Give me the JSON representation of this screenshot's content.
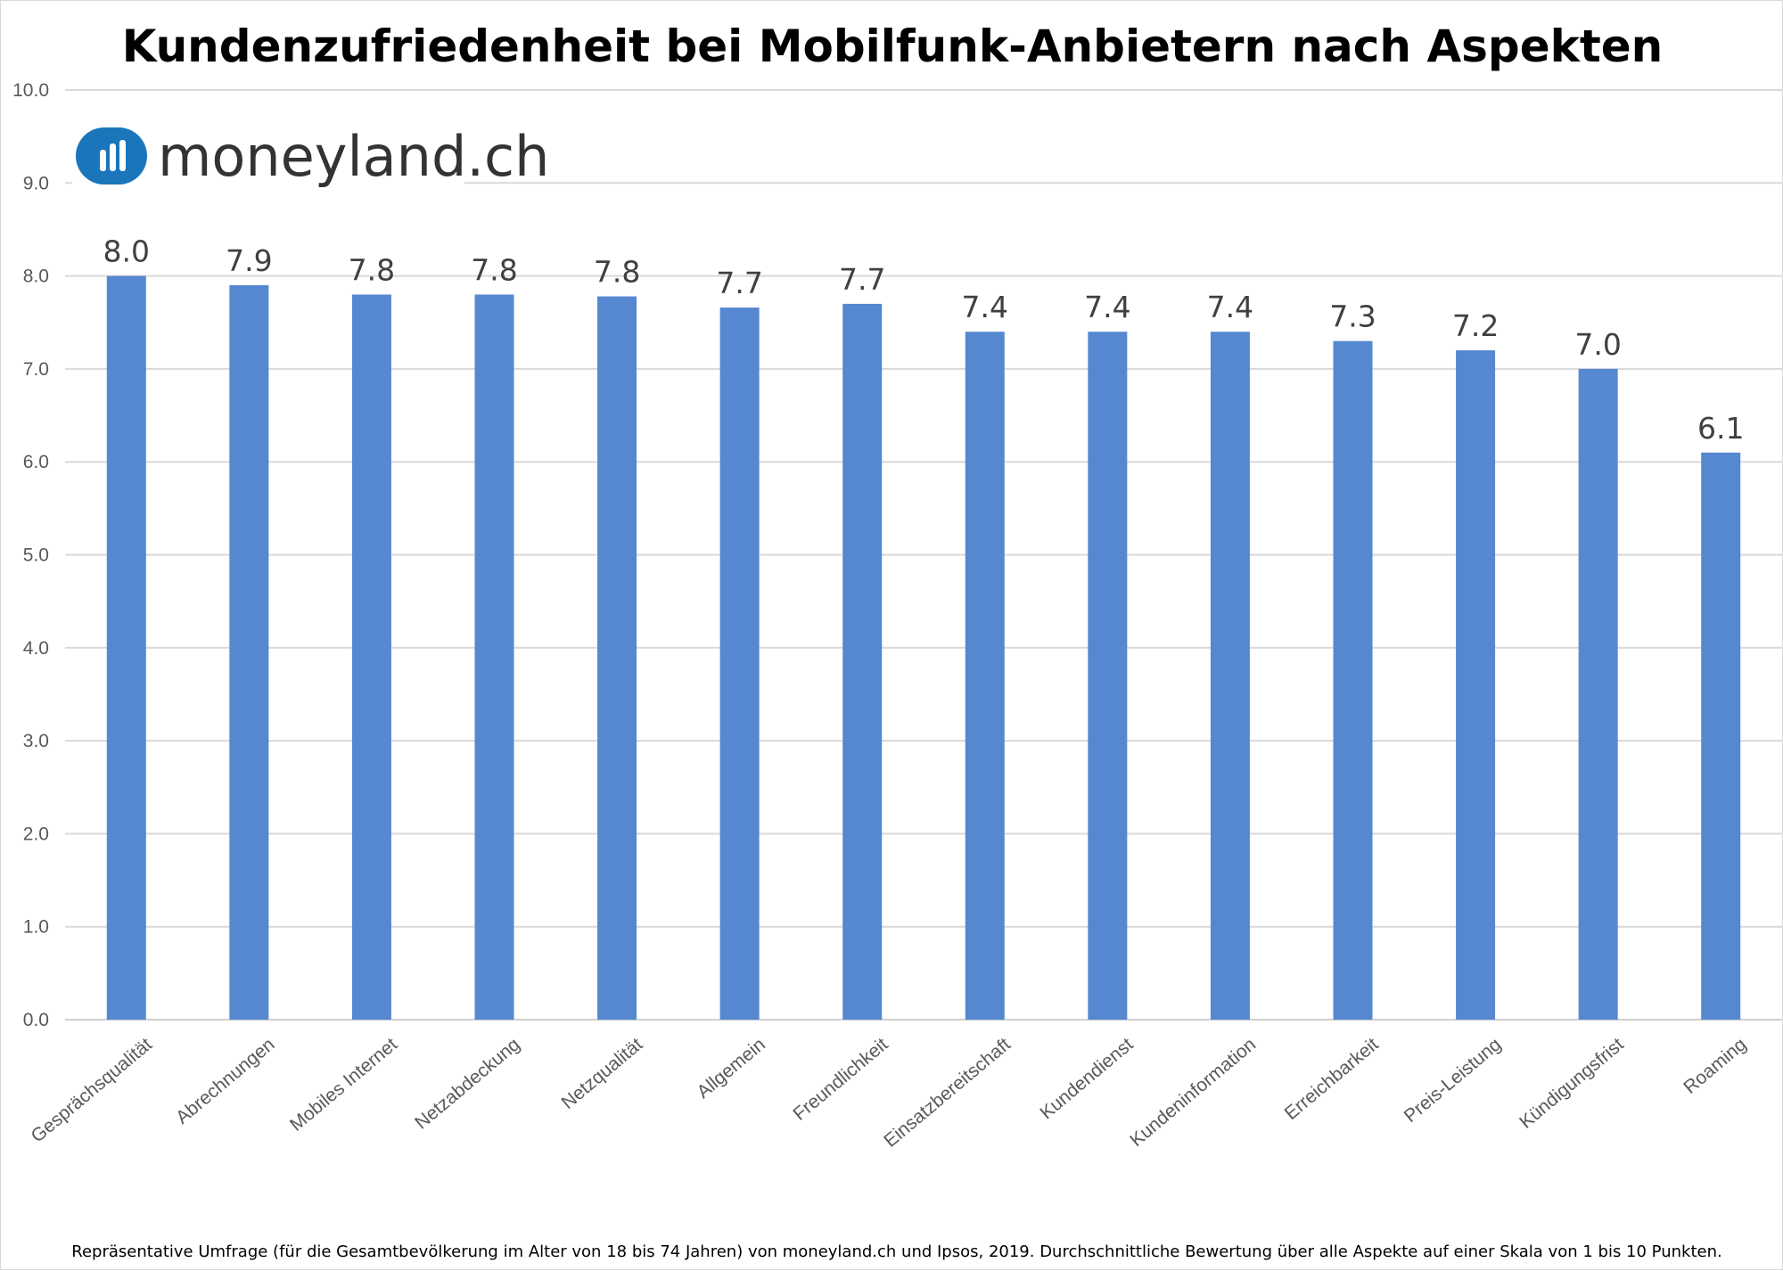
{
  "chart_data": {
    "type": "bar",
    "title": "Kundenzufriedenheit bei Mobilfunk-Anbietern nach Aspekten",
    "categories": [
      "Gesprächsqualität",
      "Abrechnungen",
      "Mobiles Internet",
      "Netzabdeckung",
      "Netzqualität",
      "Allgemein",
      "Freundlichkeit",
      "Einsatzbereitschaft",
      "Kundendienst",
      "Kundeninformation",
      "Erreichbarkeit",
      "Preis-Leistung",
      "Kündigungsfrist",
      "Roaming"
    ],
    "values": [
      8.0,
      7.9,
      7.8,
      7.8,
      7.78,
      7.66,
      7.7,
      7.4,
      7.4,
      7.4,
      7.3,
      7.2,
      7.0,
      6.1
    ],
    "value_labels": [
      "8.0",
      "7.9",
      "7.8",
      "7.8",
      "7.8",
      "7.7",
      "7.7",
      "7.4",
      "7.4",
      "7.4",
      "7.3",
      "7.2",
      "7.0",
      "6.1"
    ],
    "ylim": [
      0,
      10
    ],
    "yticks": [
      "0.0",
      "1.0",
      "2.0",
      "3.0",
      "4.0",
      "5.0",
      "6.0",
      "7.0",
      "8.0",
      "9.0",
      "10.0"
    ],
    "xlabel": "",
    "ylabel": "",
    "grid": true,
    "legend": "none",
    "bar_color": "#5588d0",
    "footnote": "Repräsentative Umfrage (für die Gesamtbevölkerung im Alter von 18 bis 74 Jahren) von moneyland.ch und Ipsos, 2019. Durchschnittliche Bewertung über alle Aspekte auf einer Skala von 1 bis 10 Punkten."
  },
  "brand": {
    "name": "moneyland.ch",
    "logo_icon": "bar-chart-icon",
    "logo_color": "#1b75bb"
  }
}
